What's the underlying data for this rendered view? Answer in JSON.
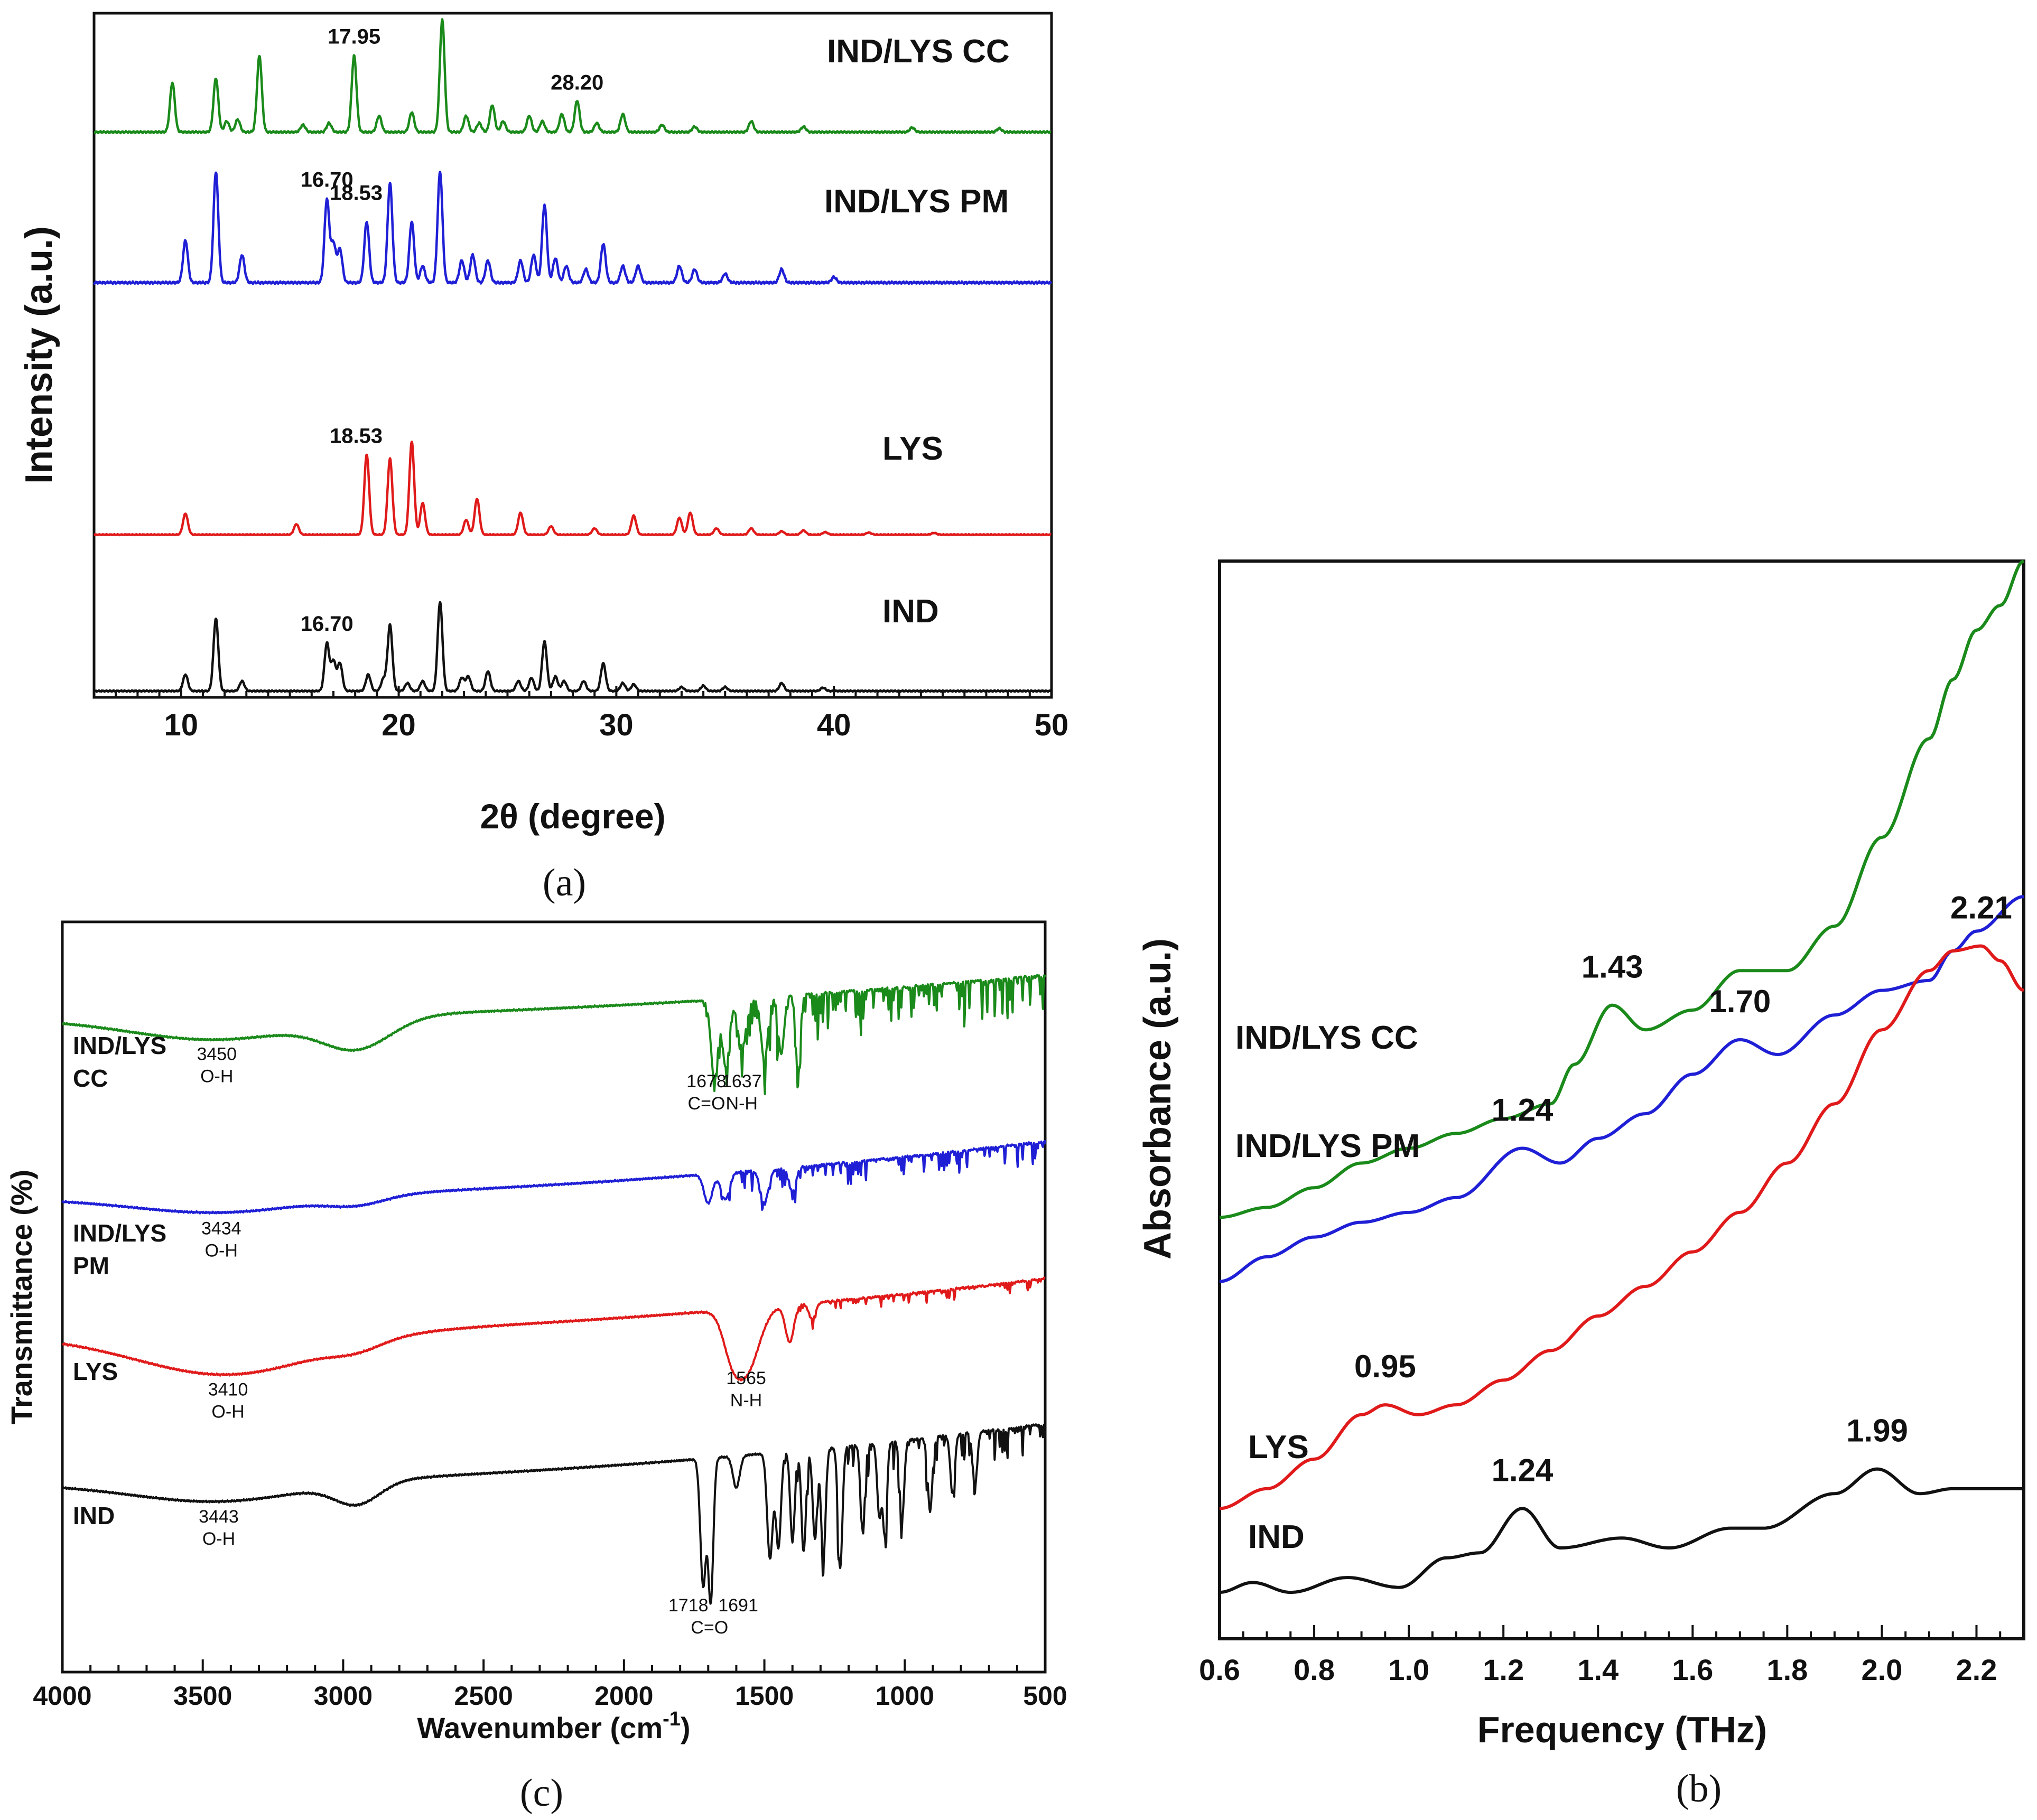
{
  "chart_data": [
    {
      "id": "a",
      "type": "line",
      "caption": "(a)",
      "xlabel": "2θ (degree)",
      "ylabel": "Intensity (a.u.)",
      "xlim": [
        6,
        50
      ],
      "xticks": [
        10,
        20,
        30,
        40,
        50
      ],
      "series": [
        {
          "name": "IND/LYS CC",
          "color": "#1a8a1a",
          "offset": 3.0,
          "peaks": [
            [
              9.6,
              0.55
            ],
            [
              11.6,
              0.6
            ],
            [
              12.1,
              0.12
            ],
            [
              12.6,
              0.14
            ],
            [
              13.6,
              0.85
            ],
            [
              15.6,
              0.08
            ],
            [
              16.8,
              0.1
            ],
            [
              17.95,
              0.85
            ],
            [
              19.1,
              0.18
            ],
            [
              20.6,
              0.22
            ],
            [
              22.0,
              1.25
            ],
            [
              23.1,
              0.18
            ],
            [
              23.7,
              0.1
            ],
            [
              24.3,
              0.3
            ],
            [
              24.8,
              0.12
            ],
            [
              26.0,
              0.18
            ],
            [
              26.6,
              0.12
            ],
            [
              27.5,
              0.2
            ],
            [
              28.2,
              0.35
            ],
            [
              29.1,
              0.1
            ],
            [
              30.3,
              0.2
            ],
            [
              32.1,
              0.08
            ],
            [
              33.6,
              0.06
            ],
            [
              36.2,
              0.12
            ],
            [
              38.6,
              0.06
            ],
            [
              43.6,
              0.05
            ],
            [
              47.6,
              0.04
            ]
          ],
          "peak_labels": [
            [
              17.95,
              "17.95"
            ],
            [
              28.2,
              "28.20"
            ]
          ]
        },
        {
          "name": "IND/LYS PM",
          "color": "#1f1fd6",
          "offset": 2.0,
          "peaks": [
            [
              10.2,
              0.38
            ],
            [
              11.6,
              1.0
            ],
            [
              12.8,
              0.25
            ],
            [
              16.7,
              0.75
            ],
            [
              17.0,
              0.35
            ],
            [
              17.3,
              0.3
            ],
            [
              18.53,
              0.55
            ],
            [
              19.6,
              0.9
            ],
            [
              20.6,
              0.55
            ],
            [
              21.1,
              0.15
            ],
            [
              21.9,
              1.0
            ],
            [
              22.9,
              0.2
            ],
            [
              23.4,
              0.25
            ],
            [
              24.1,
              0.2
            ],
            [
              25.6,
              0.2
            ],
            [
              26.2,
              0.25
            ],
            [
              26.7,
              0.7
            ],
            [
              27.2,
              0.22
            ],
            [
              27.7,
              0.15
            ],
            [
              28.6,
              0.12
            ],
            [
              29.4,
              0.35
            ],
            [
              30.3,
              0.15
            ],
            [
              31.0,
              0.15
            ],
            [
              32.9,
              0.15
            ],
            [
              33.6,
              0.12
            ],
            [
              35.0,
              0.08
            ],
            [
              37.6,
              0.12
            ],
            [
              40.0,
              0.05
            ]
          ],
          "peak_labels": [
            [
              16.7,
              "16.70"
            ],
            [
              18.53,
              "18.53"
            ]
          ]
        },
        {
          "name": "LYS",
          "color": "#e01a1a",
          "offset": 1.0,
          "peaks": [
            [
              10.2,
              0.5
            ],
            [
              15.3,
              0.25
            ],
            [
              18.53,
              1.9
            ],
            [
              19.6,
              1.8
            ],
            [
              20.6,
              2.2
            ],
            [
              21.1,
              0.75
            ],
            [
              23.1,
              0.35
            ],
            [
              23.6,
              0.85
            ],
            [
              25.6,
              0.52
            ],
            [
              27.0,
              0.2
            ],
            [
              29.0,
              0.15
            ],
            [
              30.8,
              0.45
            ],
            [
              32.9,
              0.4
            ],
            [
              33.4,
              0.52
            ],
            [
              34.6,
              0.15
            ],
            [
              36.2,
              0.15
            ],
            [
              37.6,
              0.08
            ],
            [
              38.6,
              0.1
            ],
            [
              39.6,
              0.06
            ],
            [
              41.6,
              0.05
            ],
            [
              44.6,
              0.04
            ]
          ],
          "peak_labels": [
            [
              18.53,
              "18.53"
            ]
          ]
        },
        {
          "name": "IND",
          "color": "#111111",
          "offset": 0.0,
          "peaks": [
            [
              10.2,
              0.25
            ],
            [
              11.6,
              1.1
            ],
            [
              12.8,
              0.15
            ],
            [
              16.7,
              0.72
            ],
            [
              17.0,
              0.45
            ],
            [
              17.3,
              0.42
            ],
            [
              18.6,
              0.25
            ],
            [
              19.3,
              0.18
            ],
            [
              19.6,
              1.0
            ],
            [
              20.4,
              0.12
            ],
            [
              21.1,
              0.15
            ],
            [
              21.9,
              1.35
            ],
            [
              22.9,
              0.2
            ],
            [
              23.2,
              0.22
            ],
            [
              24.1,
              0.3
            ],
            [
              25.5,
              0.15
            ],
            [
              26.1,
              0.2
            ],
            [
              26.7,
              0.75
            ],
            [
              27.2,
              0.22
            ],
            [
              27.6,
              0.15
            ],
            [
              28.5,
              0.15
            ],
            [
              29.4,
              0.42
            ],
            [
              30.3,
              0.12
            ],
            [
              30.8,
              0.1
            ],
            [
              33.0,
              0.06
            ],
            [
              34.0,
              0.08
            ],
            [
              35.0,
              0.06
            ],
            [
              37.6,
              0.12
            ],
            [
              39.5,
              0.05
            ]
          ],
          "peak_labels": [
            [
              16.7,
              "16.70"
            ]
          ]
        }
      ]
    },
    {
      "id": "b",
      "type": "line",
      "caption": "(b)",
      "xlabel": "Frequency (THz)",
      "ylabel": "Absorbance (a.u.)",
      "xlim": [
        0.6,
        2.3
      ],
      "xticks": [
        "0.6",
        "0.8",
        "1.0",
        "1.2",
        "1.4",
        "1.6",
        "1.8",
        "2.0",
        "2.2"
      ],
      "ylim": [
        0,
        1
      ],
      "series": [
        {
          "name": "IND/LYS CC",
          "color": "#1a8a1a",
          "x": [
            0.6,
            0.7,
            0.8,
            0.9,
            1.0,
            1.1,
            1.2,
            1.3,
            1.35,
            1.43,
            1.5,
            1.6,
            1.7,
            1.8,
            1.9,
            2.0,
            2.1,
            2.15,
            2.2,
            2.25,
            2.3
          ],
          "y": [
            0.335,
            0.345,
            0.365,
            0.39,
            0.405,
            0.42,
            0.435,
            0.45,
            0.49,
            0.55,
            0.525,
            0.545,
            0.585,
            0.585,
            0.63,
            0.72,
            0.82,
            0.88,
            0.93,
            0.955,
            1.0
          ]
        },
        {
          "name": "IND/LYS PM",
          "color": "#1f1fd6",
          "x": [
            0.6,
            0.7,
            0.8,
            0.9,
            1.0,
            1.1,
            1.24,
            1.32,
            1.4,
            1.5,
            1.6,
            1.7,
            1.78,
            1.9,
            2.0,
            2.1,
            2.15,
            2.2,
            2.3
          ],
          "y": [
            0.27,
            0.295,
            0.315,
            0.33,
            0.34,
            0.355,
            0.405,
            0.39,
            0.415,
            0.44,
            0.48,
            0.515,
            0.5,
            0.54,
            0.565,
            0.575,
            0.605,
            0.625,
            0.66
          ]
        },
        {
          "name": "LYS",
          "color": "#e01a1a",
          "x": [
            0.6,
            0.7,
            0.8,
            0.9,
            0.95,
            1.02,
            1.1,
            1.2,
            1.3,
            1.4,
            1.5,
            1.6,
            1.7,
            1.8,
            1.9,
            2.0,
            2.1,
            2.15,
            2.21,
            2.25,
            2.3
          ],
          "y": [
            0.04,
            0.06,
            0.09,
            0.135,
            0.145,
            0.135,
            0.145,
            0.17,
            0.2,
            0.235,
            0.265,
            0.3,
            0.34,
            0.39,
            0.45,
            0.525,
            0.585,
            0.605,
            0.61,
            0.595,
            0.565
          ]
        },
        {
          "name": "IND",
          "color": "#111111",
          "x": [
            0.6,
            0.67,
            0.75,
            0.87,
            0.98,
            1.08,
            1.15,
            1.24,
            1.32,
            1.45,
            1.55,
            1.68,
            1.75,
            1.9,
            1.99,
            2.08,
            2.15,
            2.3
          ],
          "y": [
            -0.045,
            -0.035,
            -0.045,
            -0.03,
            -0.04,
            -0.01,
            -0.005,
            0.04,
            0.0,
            0.01,
            0.0,
            0.02,
            0.02,
            0.055,
            0.08,
            0.055,
            0.06,
            0.06
          ]
        }
      ],
      "peak_labels": [
        {
          "series": "IND/LYS CC",
          "x": 1.43,
          "label": "1.43"
        },
        {
          "series": "IND/LYS PM",
          "x": 1.7,
          "label": "1.70"
        },
        {
          "series": "IND/LYS PM",
          "x": 1.24,
          "label": "1.24"
        },
        {
          "series": "LYS",
          "x": 2.21,
          "label": "2.21"
        },
        {
          "series": "LYS",
          "x": 0.95,
          "label": "0.95"
        },
        {
          "series": "IND",
          "x": 1.24,
          "label": "1.24"
        },
        {
          "series": "IND",
          "x": 1.99,
          "label": "1.99"
        }
      ]
    },
    {
      "id": "c",
      "type": "line",
      "caption": "(c)",
      "xlabel": "Wavenumber (cm-1)",
      "xlabel_base": "Wavenumber (cm",
      "xlabel_sup": "-1",
      "xlabel_end": ")",
      "ylabel": "Transmittance (%)",
      "xlim": [
        4000,
        500
      ],
      "xticks": [
        4000,
        3500,
        3000,
        2500,
        2000,
        1500,
        1000,
        500
      ],
      "series": [
        {
          "name": "IND/LYS CC",
          "name_lines": [
            "IND/LYS",
            "CC"
          ],
          "color": "#1a8a1a",
          "annotations": [
            {
              "x": 3450,
              "lines": [
                "3450",
                "O-H"
              ]
            },
            {
              "x": 1678,
              "lines": [
                "1678",
                "C=O"
              ]
            },
            {
              "x": 1637,
              "lines": [
                "1637",
                "N-H"
              ]
            }
          ]
        },
        {
          "name": "IND/LYS PM",
          "name_lines": [
            "IND/LYS",
            "PM"
          ],
          "color": "#1f1fd6",
          "annotations": [
            {
              "x": 3434,
              "lines": [
                "3434",
                "O-H"
              ]
            }
          ]
        },
        {
          "name": "LYS",
          "name_lines": [
            "LYS"
          ],
          "color": "#e01a1a",
          "annotations": [
            {
              "x": 3410,
              "lines": [
                "3410",
                "O-H"
              ]
            },
            {
              "x": 1565,
              "lines": [
                "1565",
                "N-H"
              ]
            }
          ]
        },
        {
          "name": "IND",
          "name_lines": [
            "IND"
          ],
          "color": "#111111",
          "annotations": [
            {
              "x": 3443,
              "lines": [
                "3443",
                "O-H"
              ]
            },
            {
              "x": 1718,
              "lines": [
                "1718",
                "C=O"
              ]
            },
            {
              "x": 1691,
              "lines": [
                "1691"
              ]
            }
          ]
        }
      ]
    }
  ]
}
